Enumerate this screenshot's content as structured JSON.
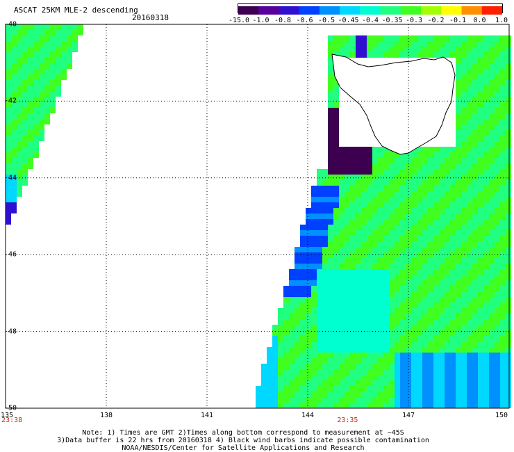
{
  "header": {
    "title": "ASCAT 25KM MLE-2 descending",
    "date": "20160318"
  },
  "colorbar": {
    "colors": [
      "#3d0050",
      "#5a009a",
      "#3010d0",
      "#0040ff",
      "#0090ff",
      "#00d8ff",
      "#00ffd0",
      "#20ff80",
      "#40ff20",
      "#a0ff00",
      "#ffff00",
      "#ff9000",
      "#ff2000"
    ],
    "ticks": [
      "-15.0",
      "-1.0",
      "-0.8",
      "-0.6",
      "-0.5",
      "-0.45",
      "-0.4",
      "-0.35",
      "-0.3",
      "-0.2",
      "-0.1",
      "0.0",
      "1.0"
    ]
  },
  "map": {
    "lon_range": [
      135,
      150
    ],
    "lat_range": [
      -40,
      -50
    ],
    "lon_ticks": [
      "135",
      "138",
      "141",
      "144",
      "147",
      "150"
    ],
    "lat_ticks": [
      "-40",
      "-42",
      "-44",
      "-46",
      "-48",
      "-50"
    ],
    "pass_times": [
      {
        "label": "23:38",
        "lon": 135
      },
      {
        "label": "23:35",
        "lon": 145
      }
    ]
  },
  "footer": {
    "note_line1": "Note: 1) Times are GMT 2)Times along bottom correspond to measurement at ~45S",
    "note_line2": "3)Data buffer is 22 hrs from 20160318 4) Black wind barbs indicate possible contamination",
    "credit": "NOAA/NESDIS/Center for Satellite Applications and Research"
  }
}
